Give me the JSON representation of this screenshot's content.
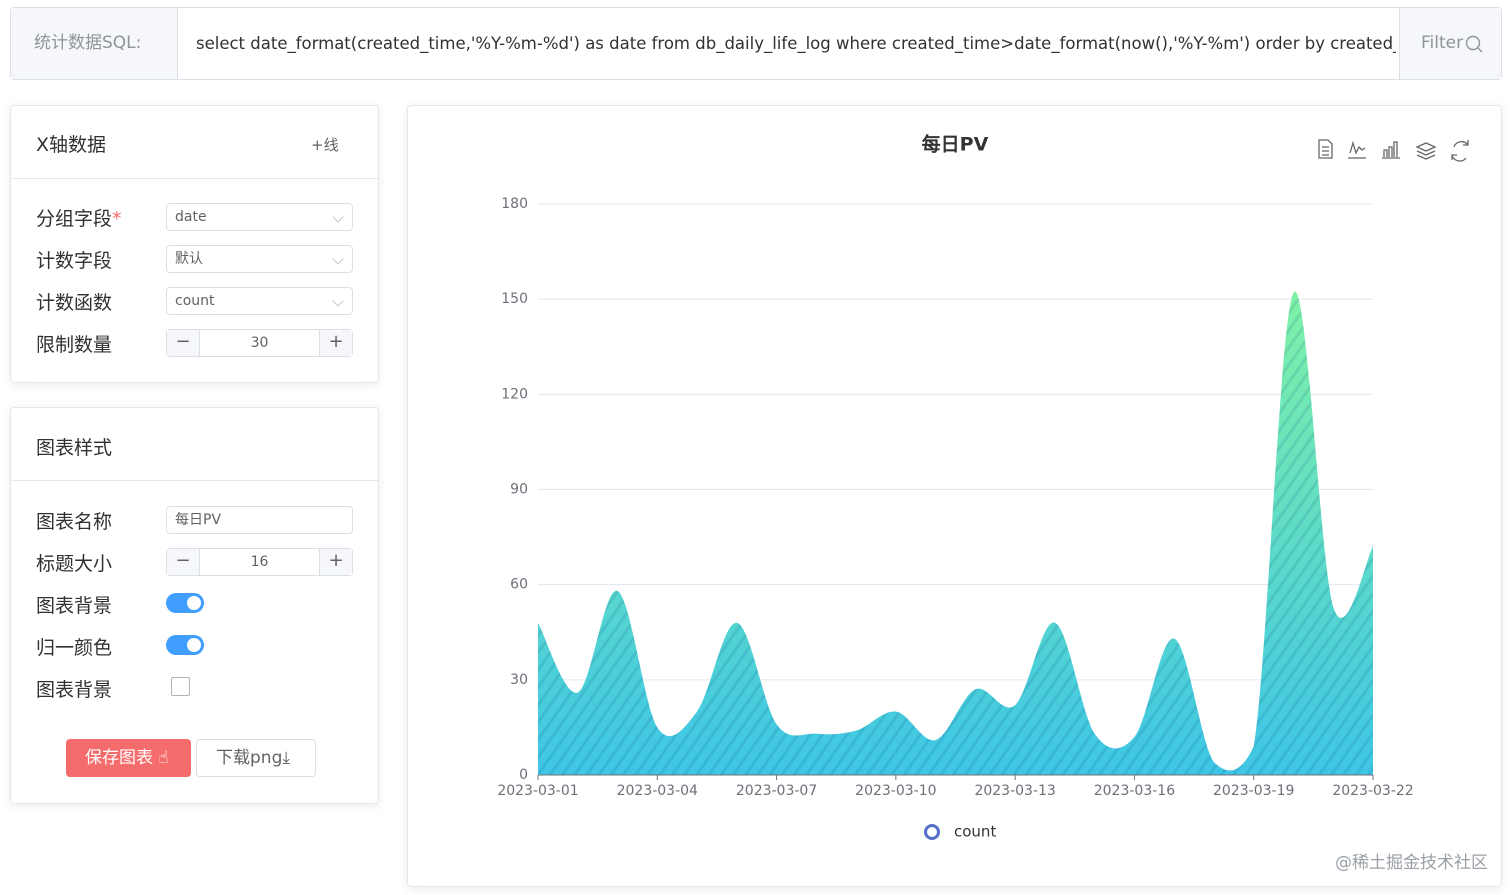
{
  "sql_bar": {
    "label": "统计数据SQL:",
    "query": "select date_format(created_time,'%Y-%m-%d') as date from db_daily_life_log where created_time>date_format(now(),'%Y-%m') order by created_time desc",
    "button": "Filter"
  },
  "x_axis_panel": {
    "title": "X轴数据",
    "add_line": "+线",
    "fields": [
      {
        "label": "分组字段",
        "required": "*",
        "value": "date"
      },
      {
        "label": "计数字段",
        "value": "默认"
      },
      {
        "label": "计数函数",
        "value": "count"
      }
    ],
    "limit": {
      "label": "限制数量",
      "value": 30
    }
  },
  "style_panel": {
    "title": "图表样式",
    "name": {
      "label": "图表名称",
      "value": "每日PV"
    },
    "title_size": {
      "label": "标题大小",
      "value": 16
    },
    "background": {
      "label": "图表背景"
    },
    "unify_color": {
      "label": "归一颜色"
    },
    "background_checkbox": {
      "label": "图表背景"
    },
    "save_button": "保存图表",
    "download_button": "下载png"
  },
  "watermark": "@稀土掘金技术社区",
  "chart_data": {
    "type": "area",
    "title": "每日PV",
    "categories": [
      "2023-03-01",
      null,
      null,
      "2023-03-04",
      null,
      null,
      "2023-03-07",
      null,
      null,
      "2023-03-10",
      null,
      null,
      "2023-03-13",
      null,
      null,
      "2023-03-16",
      null,
      null,
      "2023-03-19",
      null,
      null,
      "2023-03-22"
    ],
    "series": [
      {
        "name": "count",
        "color": "#3ec6e6",
        "color_top": "#80f2a6",
        "values": [
          48,
          26,
          58,
          15,
          20,
          48,
          16,
          13,
          14,
          20,
          11,
          27,
          22,
          48,
          13,
          12,
          43,
          4,
          9,
          152,
          53,
          72
        ]
      }
    ],
    "ylim": [
      0,
      180
    ],
    "yticks": [
      0,
      30,
      60,
      90,
      120,
      150,
      180
    ],
    "grid": true,
    "legend": "bottom"
  }
}
